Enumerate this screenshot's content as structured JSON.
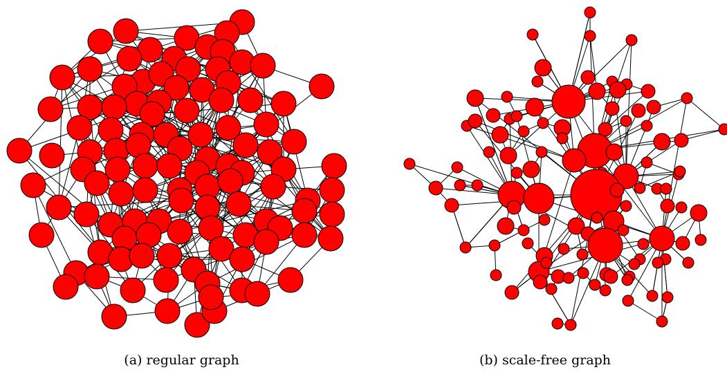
{
  "node_color": "#ff0000",
  "edge_color": "#000000",
  "panels": [
    {
      "caption": "(a) regular graph"
    },
    {
      "caption": "(b) scale-free graph"
    }
  ]
}
